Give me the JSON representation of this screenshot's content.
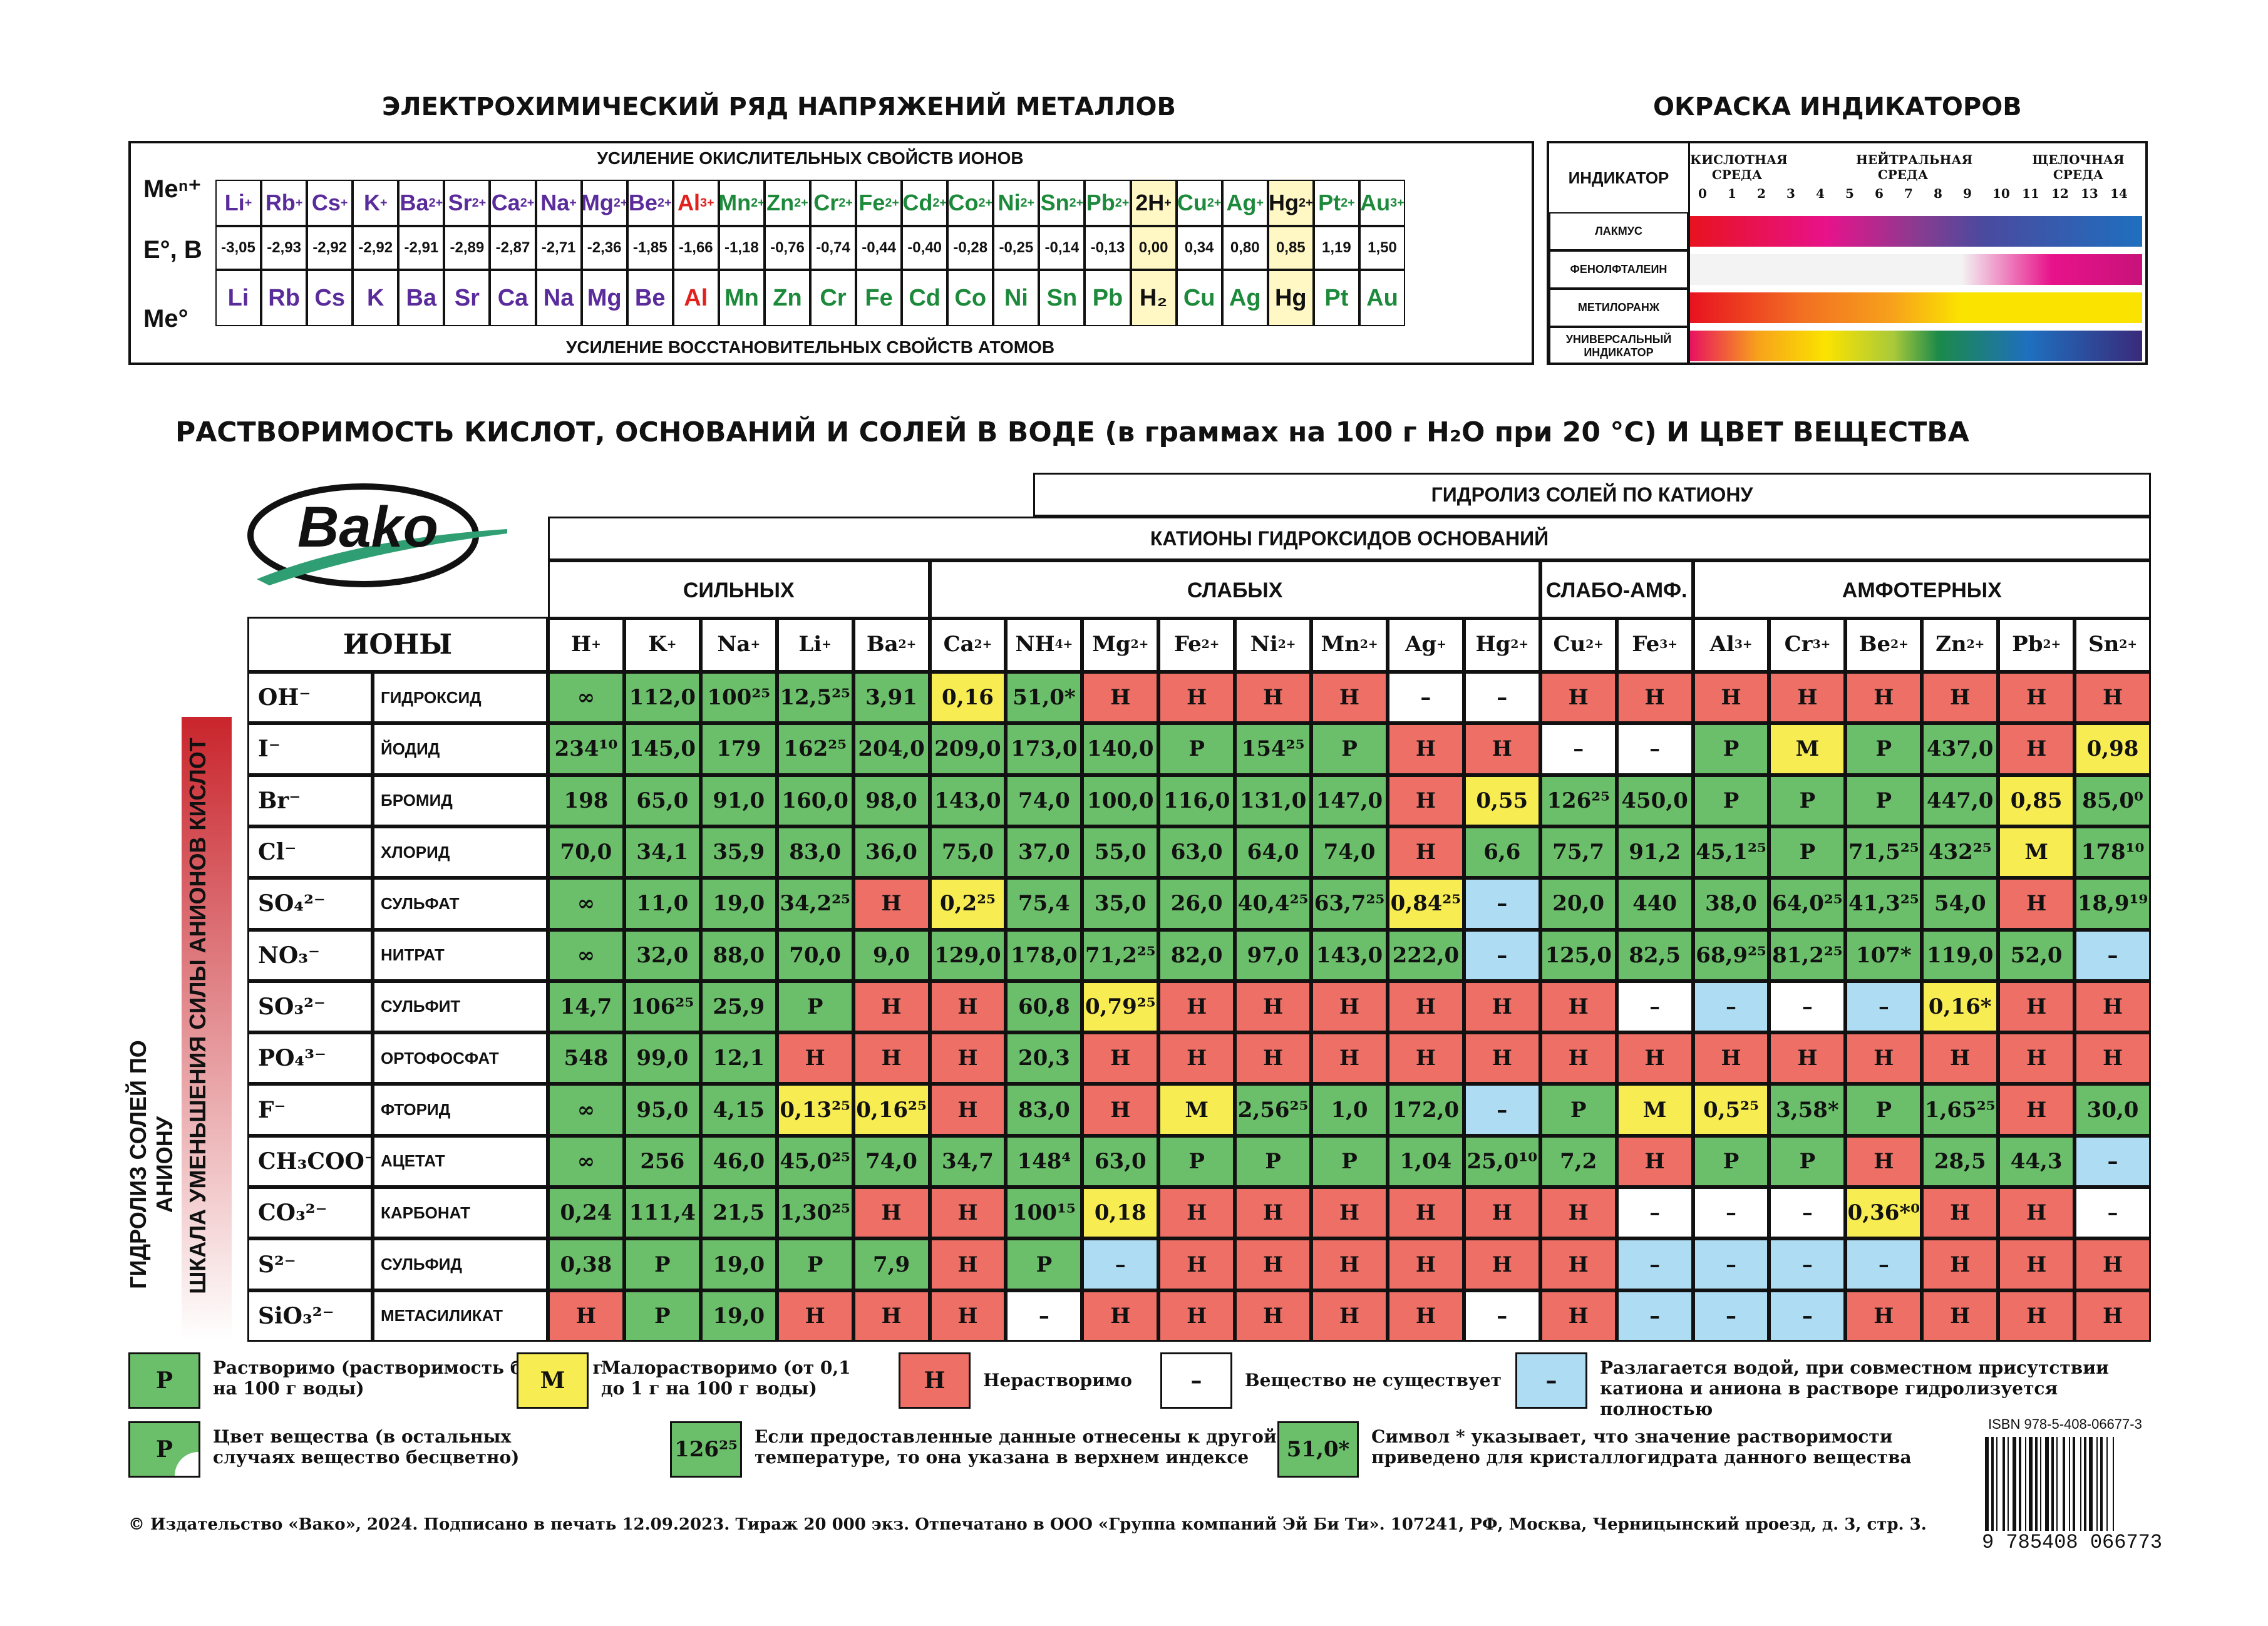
{
  "series_title": "ЭЛЕКТРОХИМИЧЕСКИЙ РЯД НАПРЯЖЕНИЙ МЕТАЛЛОВ",
  "indicator_title": "ОКРАСКА ИНДИКАТОРОВ",
  "oxid_label": "УСИЛЕНИЕ ОКИСЛИТЕЛЬНЫХ СВОЙСТВ ИОНОВ",
  "reduc_label": "УСИЛЕНИЕ ВОССТАНОВИТЕЛЬНЫХ СВОЙСТВ АТОМОВ",
  "row_me_ion": "Meⁿ⁺",
  "row_e": "E°, В",
  "row_me0": "Me°",
  "ions": [
    "Li+",
    "Rb+",
    "Cs+",
    "K+",
    "Ba2+",
    "Sr2+",
    "Ca2+",
    "Na+",
    "Mg2+",
    "Be2+",
    "Al3+",
    "Mn2+",
    "Zn2+",
    "Cr2+",
    "Fe2+",
    "Cd2+",
    "Co2+",
    "Ni2+",
    "Sn2+",
    "Pb2+",
    "2H+",
    "Cu2+",
    "Ag+",
    "Hg2+",
    "Pt2+",
    "Au3+"
  ],
  "potentials": [
    "-3,05",
    "-2,93",
    "-2,92",
    "-2,92",
    "-2,91",
    "-2,89",
    "-2,87",
    "-2,71",
    "-2,36",
    "-1,85",
    "-1,66",
    "-1,18",
    "-0,76",
    "-0,74",
    "-0,44",
    "-0,40",
    "-0,28",
    "-0,25",
    "-0,14",
    "-0,13",
    "0,00",
    "0,34",
    "0,80",
    "0,85",
    "1,19",
    "1,50"
  ],
  "metals": [
    "Li",
    "Rb",
    "Cs",
    "K",
    "Ba",
    "Sr",
    "Ca",
    "Na",
    "Mg",
    "Be",
    "Al",
    "Mn",
    "Zn",
    "Cr",
    "Fe",
    "Cd",
    "Co",
    "Ni",
    "Sn",
    "Pb",
    "H₂",
    "Cu",
    "Ag",
    "Hg",
    "Pt",
    "Au"
  ],
  "indicator": {
    "header": "ИНДИКАТОР",
    "acid": "КИСЛОТНАЯ СРЕДА",
    "neutral": "НЕЙТРАЛЬНАЯ СРЕДА",
    "alkaline": "ЩЕЛОЧНАЯ СРЕДА",
    "scale": [
      "0",
      "1",
      "2",
      "3",
      "4",
      "5",
      "6",
      "7",
      "8",
      "9",
      "10",
      "11",
      "12",
      "13",
      "14"
    ],
    "rows": [
      "ЛАКМУС",
      "ФЕНОЛФТАЛЕИН",
      "МЕТИЛОРАНЖ",
      "УНИВЕРСАЛЬНЫЙ ИНДИКАТОР"
    ]
  },
  "solubility_title": "РАСТВОРИМОСТЬ КИСЛОТ, ОСНОВАНИЙ И СОЛЕЙ В ВОДЕ (в граммах на 100 г H₂O при 20 °C) И ЦВЕТ ВЕЩЕСТВА",
  "logo": "Bako",
  "hydro_cation": "ГИДРОЛИЗ СОЛЕЙ ПО КАТИОНУ",
  "cations_header": "КАТИОНЫ ГИДРОКСИДОВ ОСНОВАНИЙ",
  "groups": [
    "СИЛЬНЫХ",
    "СЛАБЫХ",
    "СЛАБО-АМФ.",
    "АМФОТЕРНЫХ"
  ],
  "ions_label": "ИОНЫ",
  "cations": [
    "H+",
    "K+",
    "Na+",
    "Li+",
    "Ba2+",
    "Ca2+",
    "NH4+",
    "Mg2+",
    "Fe2+",
    "Ni2+",
    "Mn2+",
    "Ag+",
    "Hg2+",
    "Cu2+",
    "Fe3+",
    "Al3+",
    "Cr3+",
    "Be2+",
    "Zn2+",
    "Pb2+",
    "Sn2+"
  ],
  "side_scale": "ШКАЛА УМЕНЬШЕНИЯ СИЛЫ АНИОНОВ КИСЛОТ",
  "side_hydro": "ГИДРОЛИЗ СОЛЕЙ ПО АНИОНУ",
  "rows": [
    {
      "ion": "OH⁻",
      "name": "ГИДРОКСИД",
      "cells": [
        [
          "g",
          "∞"
        ],
        [
          "g",
          "112,0"
        ],
        [
          "g",
          "100²⁵"
        ],
        [
          "g",
          "12,5²⁵"
        ],
        [
          "g",
          "3,91"
        ],
        [
          "y",
          "0,16"
        ],
        [
          "g",
          "51,0*"
        ],
        [
          "r",
          "Н"
        ],
        [
          "r",
          "Н"
        ],
        [
          "r",
          "Н"
        ],
        [
          "r",
          "Н"
        ],
        [
          "w",
          "–"
        ],
        [
          "w",
          "–"
        ],
        [
          "r",
          "Н"
        ],
        [
          "r",
          "Н"
        ],
        [
          "r",
          "Н"
        ],
        [
          "r",
          "Н"
        ],
        [
          "r",
          "Н"
        ],
        [
          "r",
          "Н"
        ],
        [
          "r",
          "Н"
        ],
        [
          "r",
          "Н"
        ]
      ]
    },
    {
      "ion": "I⁻",
      "name": "ЙОДИД",
      "cells": [
        [
          "g",
          "234¹⁰"
        ],
        [
          "g",
          "145,0"
        ],
        [
          "g",
          "179"
        ],
        [
          "g",
          "162²⁵"
        ],
        [
          "g",
          "204,0"
        ],
        [
          "g",
          "209,0"
        ],
        [
          "g",
          "173,0"
        ],
        [
          "g",
          "140,0"
        ],
        [
          "g",
          "Р"
        ],
        [
          "g",
          "154²⁵"
        ],
        [
          "g",
          "Р"
        ],
        [
          "r",
          "Н"
        ],
        [
          "r",
          "Н"
        ],
        [
          "w",
          "–"
        ],
        [
          "w",
          "–"
        ],
        [
          "g",
          "Р"
        ],
        [
          "y",
          "М"
        ],
        [
          "g",
          "Р"
        ],
        [
          "g",
          "437,0"
        ],
        [
          "r",
          "Н"
        ],
        [
          "y",
          "0,98"
        ]
      ]
    },
    {
      "ion": "Br⁻",
      "name": "БРОМИД",
      "cells": [
        [
          "g",
          "198"
        ],
        [
          "g",
          "65,0"
        ],
        [
          "g",
          "91,0"
        ],
        [
          "g",
          "160,0"
        ],
        [
          "g",
          "98,0"
        ],
        [
          "g",
          "143,0"
        ],
        [
          "g",
          "74,0"
        ],
        [
          "g",
          "100,0"
        ],
        [
          "g",
          "116,0"
        ],
        [
          "g",
          "131,0"
        ],
        [
          "g",
          "147,0"
        ],
        [
          "r",
          "Н"
        ],
        [
          "y",
          "0,55"
        ],
        [
          "g",
          "126²⁵"
        ],
        [
          "g",
          "450,0"
        ],
        [
          "g",
          "Р"
        ],
        [
          "g",
          "Р"
        ],
        [
          "g",
          "Р"
        ],
        [
          "g",
          "447,0"
        ],
        [
          "y",
          "0,85"
        ],
        [
          "g",
          "85,0⁰"
        ]
      ]
    },
    {
      "ion": "Cl⁻",
      "name": "ХЛОРИД",
      "cells": [
        [
          "g",
          "70,0"
        ],
        [
          "g",
          "34,1"
        ],
        [
          "g",
          "35,9"
        ],
        [
          "g",
          "83,0"
        ],
        [
          "g",
          "36,0"
        ],
        [
          "g",
          "75,0"
        ],
        [
          "g",
          "37,0"
        ],
        [
          "g",
          "55,0"
        ],
        [
          "g",
          "63,0"
        ],
        [
          "g",
          "64,0"
        ],
        [
          "g",
          "74,0"
        ],
        [
          "r",
          "Н"
        ],
        [
          "g",
          "6,6"
        ],
        [
          "g",
          "75,7"
        ],
        [
          "g",
          "91,2"
        ],
        [
          "g",
          "45,1²⁵"
        ],
        [
          "g",
          "Р"
        ],
        [
          "g",
          "71,5²⁵"
        ],
        [
          "g",
          "432²⁵"
        ],
        [
          "y",
          "М"
        ],
        [
          "g",
          "178¹⁰"
        ]
      ]
    },
    {
      "ion": "SO₄²⁻",
      "name": "СУЛЬФАТ",
      "cells": [
        [
          "g",
          "∞"
        ],
        [
          "g",
          "11,0"
        ],
        [
          "g",
          "19,0"
        ],
        [
          "g",
          "34,2²⁵"
        ],
        [
          "r",
          "Н"
        ],
        [
          "y",
          "0,2²⁵"
        ],
        [
          "g",
          "75,4"
        ],
        [
          "g",
          "35,0"
        ],
        [
          "g",
          "26,0"
        ],
        [
          "g",
          "40,4²⁵"
        ],
        [
          "g",
          "63,7²⁵"
        ],
        [
          "y",
          "0,84²⁵"
        ],
        [
          "b",
          "–"
        ],
        [
          "g",
          "20,0"
        ],
        [
          "g",
          "440"
        ],
        [
          "g",
          "38,0"
        ],
        [
          "g",
          "64,0²⁵"
        ],
        [
          "g",
          "41,3²⁵"
        ],
        [
          "g",
          "54,0"
        ],
        [
          "r",
          "Н"
        ],
        [
          "g",
          "18,9¹⁹"
        ]
      ]
    },
    {
      "ion": "NO₃⁻",
      "name": "НИТРАТ",
      "cells": [
        [
          "g",
          "∞"
        ],
        [
          "g",
          "32,0"
        ],
        [
          "g",
          "88,0"
        ],
        [
          "g",
          "70,0"
        ],
        [
          "g",
          "9,0"
        ],
        [
          "g",
          "129,0"
        ],
        [
          "g",
          "178,0"
        ],
        [
          "g",
          "71,2²⁵"
        ],
        [
          "g",
          "82,0"
        ],
        [
          "g",
          "97,0"
        ],
        [
          "g",
          "143,0"
        ],
        [
          "g",
          "222,0"
        ],
        [
          "b",
          "–"
        ],
        [
          "g",
          "125,0"
        ],
        [
          "g",
          "82,5"
        ],
        [
          "g",
          "68,9²⁵"
        ],
        [
          "g",
          "81,2²⁵"
        ],
        [
          "g",
          "107*"
        ],
        [
          "g",
          "119,0"
        ],
        [
          "g",
          "52,0"
        ],
        [
          "b",
          "–"
        ]
      ]
    },
    {
      "ion": "SO₃²⁻",
      "name": "СУЛЬФИТ",
      "cells": [
        [
          "g",
          "14,7"
        ],
        [
          "g",
          "106²⁵"
        ],
        [
          "g",
          "25,9"
        ],
        [
          "g",
          "Р"
        ],
        [
          "r",
          "Н"
        ],
        [
          "r",
          "Н"
        ],
        [
          "g",
          "60,8"
        ],
        [
          "y",
          "0,79²⁵"
        ],
        [
          "r",
          "Н"
        ],
        [
          "r",
          "Н"
        ],
        [
          "r",
          "Н"
        ],
        [
          "r",
          "Н"
        ],
        [
          "r",
          "Н"
        ],
        [
          "r",
          "Н"
        ],
        [
          "w",
          "–"
        ],
        [
          "b",
          "–"
        ],
        [
          "w",
          "–"
        ],
        [
          "b",
          "–"
        ],
        [
          "y",
          "0,16*"
        ],
        [
          "r",
          "Н"
        ],
        [
          "r",
          "Н"
        ]
      ]
    },
    {
      "ion": "PO₄³⁻",
      "name": "ОРТОФОСФАТ",
      "cells": [
        [
          "g",
          "548"
        ],
        [
          "g",
          "99,0"
        ],
        [
          "g",
          "12,1"
        ],
        [
          "r",
          "Н"
        ],
        [
          "r",
          "Н"
        ],
        [
          "r",
          "Н"
        ],
        [
          "g",
          "20,3"
        ],
        [
          "r",
          "Н"
        ],
        [
          "r",
          "Н"
        ],
        [
          "r",
          "Н"
        ],
        [
          "r",
          "Н"
        ],
        [
          "r",
          "Н"
        ],
        [
          "r",
          "Н"
        ],
        [
          "r",
          "Н"
        ],
        [
          "r",
          "Н"
        ],
        [
          "r",
          "Н"
        ],
        [
          "r",
          "Н"
        ],
        [
          "r",
          "Н"
        ],
        [
          "r",
          "Н"
        ],
        [
          "r",
          "Н"
        ],
        [
          "r",
          "Н"
        ]
      ]
    },
    {
      "ion": "F⁻",
      "name": "ФТОРИД",
      "cells": [
        [
          "g",
          "∞"
        ],
        [
          "g",
          "95,0"
        ],
        [
          "g",
          "4,15"
        ],
        [
          "y",
          "0,13²⁵"
        ],
        [
          "y",
          "0,16²⁵"
        ],
        [
          "r",
          "Н"
        ],
        [
          "g",
          "83,0"
        ],
        [
          "r",
          "Н"
        ],
        [
          "y",
          "М"
        ],
        [
          "g",
          "2,56²⁵"
        ],
        [
          "g",
          "1,0"
        ],
        [
          "g",
          "172,0"
        ],
        [
          "b",
          "–"
        ],
        [
          "g",
          "Р"
        ],
        [
          "y",
          "М"
        ],
        [
          "y",
          "0,5²⁵"
        ],
        [
          "g",
          "3,58*"
        ],
        [
          "g",
          "Р"
        ],
        [
          "g",
          "1,65²⁵"
        ],
        [
          "r",
          "Н"
        ],
        [
          "g",
          "30,0"
        ]
      ]
    },
    {
      "ion": "CH₃COO⁻",
      "name": "АЦЕТАТ",
      "cells": [
        [
          "g",
          "∞"
        ],
        [
          "g",
          "256"
        ],
        [
          "g",
          "46,0"
        ],
        [
          "g",
          "45,0²⁵"
        ],
        [
          "g",
          "74,0"
        ],
        [
          "g",
          "34,7"
        ],
        [
          "g",
          "148⁴"
        ],
        [
          "g",
          "63,0"
        ],
        [
          "g",
          "Р"
        ],
        [
          "g",
          "Р"
        ],
        [
          "g",
          "Р"
        ],
        [
          "g",
          "1,04"
        ],
        [
          "g",
          "25,0¹⁰"
        ],
        [
          "g",
          "7,2"
        ],
        [
          "r",
          "Н"
        ],
        [
          "g",
          "Р"
        ],
        [
          "g",
          "Р"
        ],
        [
          "r",
          "Н"
        ],
        [
          "g",
          "28,5"
        ],
        [
          "g",
          "44,3"
        ],
        [
          "b",
          "–"
        ]
      ]
    },
    {
      "ion": "CO₃²⁻",
      "name": "КАРБОНАТ",
      "cells": [
        [
          "g",
          "0,24"
        ],
        [
          "g",
          "111,4"
        ],
        [
          "g",
          "21,5"
        ],
        [
          "g",
          "1,30²⁵"
        ],
        [
          "r",
          "Н"
        ],
        [
          "r",
          "Н"
        ],
        [
          "g",
          "100¹⁵"
        ],
        [
          "y",
          "0,18"
        ],
        [
          "r",
          "Н"
        ],
        [
          "r",
          "Н"
        ],
        [
          "r",
          "Н"
        ],
        [
          "r",
          "Н"
        ],
        [
          "r",
          "Н"
        ],
        [
          "r",
          "Н"
        ],
        [
          "w",
          "–"
        ],
        [
          "w",
          "–"
        ],
        [
          "w",
          "–"
        ],
        [
          "y",
          "0,36*⁰"
        ],
        [
          "r",
          "Н"
        ],
        [
          "r",
          "Н"
        ],
        [
          "w",
          "–"
        ]
      ]
    },
    {
      "ion": "S²⁻",
      "name": "СУЛЬФИД",
      "cells": [
        [
          "g",
          "0,38"
        ],
        [
          "g",
          "Р"
        ],
        [
          "g",
          "19,0"
        ],
        [
          "g",
          "Р"
        ],
        [
          "g",
          "7,9"
        ],
        [
          "r",
          "Н"
        ],
        [
          "g",
          "Р"
        ],
        [
          "b",
          "–"
        ],
        [
          "r",
          "Н"
        ],
        [
          "r",
          "Н"
        ],
        [
          "r",
          "Н"
        ],
        [
          "r",
          "Н"
        ],
        [
          "r",
          "Н"
        ],
        [
          "r",
          "Н"
        ],
        [
          "b",
          "–"
        ],
        [
          "b",
          "–"
        ],
        [
          "b",
          "–"
        ],
        [
          "b",
          "–"
        ],
        [
          "r",
          "Н"
        ],
        [
          "r",
          "Н"
        ],
        [
          "r",
          "Н"
        ]
      ]
    },
    {
      "ion": "SiO₃²⁻",
      "name": "МЕТАСИЛИКАТ",
      "cells": [
        [
          "r",
          "Н"
        ],
        [
          "g",
          "Р"
        ],
        [
          "g",
          "19,0"
        ],
        [
          "r",
          "Н"
        ],
        [
          "r",
          "Н"
        ],
        [
          "r",
          "Н"
        ],
        [
          "w",
          "–"
        ],
        [
          "r",
          "Н"
        ],
        [
          "r",
          "Н"
        ],
        [
          "r",
          "Н"
        ],
        [
          "r",
          "Н"
        ],
        [
          "r",
          "Н"
        ],
        [
          "w",
          "–"
        ],
        [
          "r",
          "Н"
        ],
        [
          "b",
          "–"
        ],
        [
          "b",
          "–"
        ],
        [
          "b",
          "–"
        ],
        [
          "r",
          "Н"
        ],
        [
          "r",
          "Н"
        ],
        [
          "r",
          "Н"
        ],
        [
          "r",
          "Н"
        ]
      ]
    }
  ],
  "legend": {
    "p_symbol": "Р",
    "p_text": "Растворимо (растворимость более 1 г на 100 г воды)",
    "m_symbol": "М",
    "m_text": "Малорастворимо (от 0,1 до 1 г на 100 г воды)",
    "n_symbol": "Н",
    "n_text": "Нерастворимо",
    "dash_symbol": "–",
    "dash_text": "Вещество не существует",
    "blue_symbol": "–",
    "blue_text": "Разлагается водой, при совместном присутствии катиона и аниона в растворе гидролизуется полностью",
    "color_symbol": "Р",
    "color_text": "Цвет вещества (в остальных случаях вещество бесцветно)",
    "temp_symbol": "126²⁵",
    "temp_text": "Если предоставленные данные отнесены к другой температуре, то она указана в верхнем индексе",
    "star_symbol": "51,0*",
    "star_text": "Символ * указывает, что значение растворимости приведено для кристаллогидрата данного вещества"
  },
  "isbn": "ISBN 978-5-408-06677-3",
  "barcode_digits": "9 785408 066773",
  "footer": "© Издательство «Вако», 2024. Подписано в печать 12.09.2023. Тираж 20 000 экз. Отпечатано в ООО «Группа компаний Эй Би Ти». 107241, РФ, Москва, Черницынский проезд, д. 3, стр. 3.",
  "colors": {
    "green": "#6cbf6a",
    "red": "#ee6f66",
    "yellow": "#f7ec52",
    "blue": "#aedcf3",
    "purple": "#5a2b9a",
    "darkgreen": "#1d8a3b",
    "alred": "#e0211d"
  }
}
